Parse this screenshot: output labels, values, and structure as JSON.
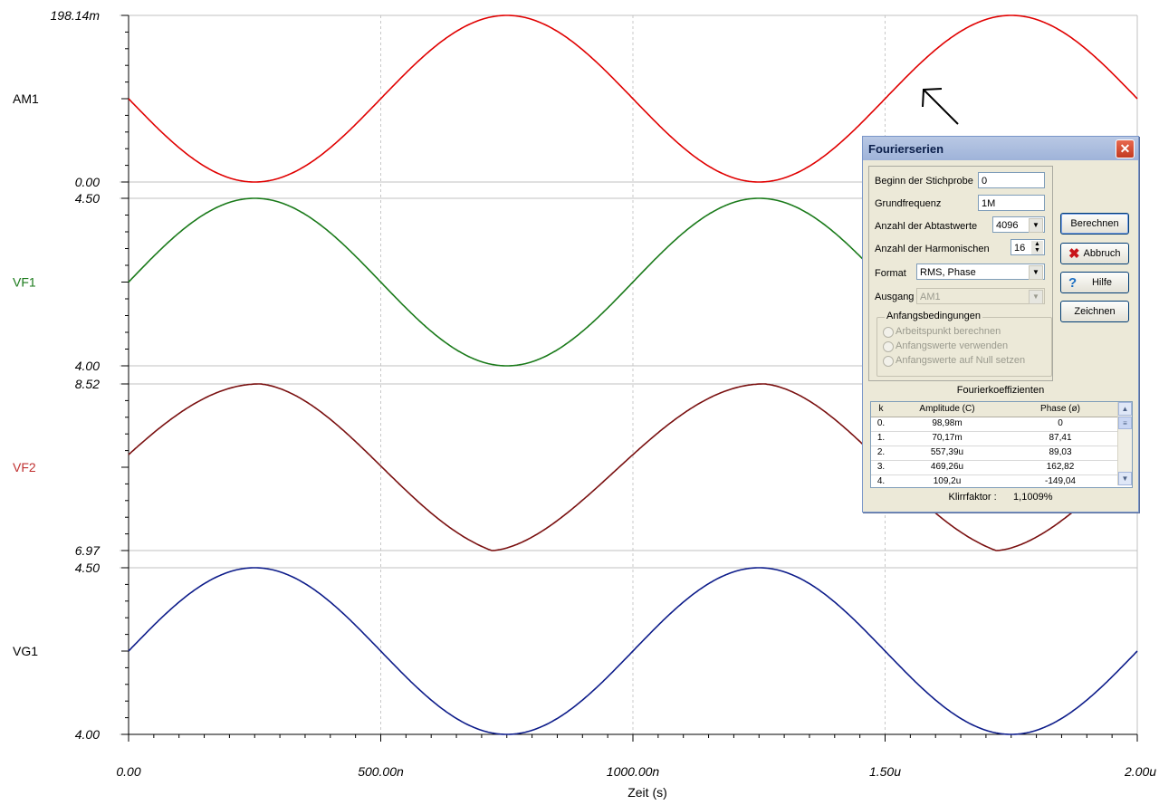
{
  "chart_data": {
    "type": "line",
    "xlabel": "Zeit (s)",
    "x_ticks": [
      "0.00",
      "500.00n",
      "1000.00n",
      "1.50u",
      "2.00u"
    ],
    "x_range_s": [
      0,
      2e-06
    ],
    "panels": [
      {
        "name": "AM1",
        "color": "#e00000",
        "y_top": "198.14m",
        "y_bottom": "0.00",
        "ymin": 0,
        "ymax": 0.19814,
        "series": {
          "shape": "sine",
          "period_s": 1e-06,
          "peak_s": 7.5e-07,
          "offset": 0.09907,
          "amplitude": 0.09907
        }
      },
      {
        "name": "VF1",
        "color": "#1a7a1a",
        "y_top": "4.50",
        "y_bottom": "4.00",
        "ymin": 4.0,
        "ymax": 4.5,
        "series": {
          "shape": "sine",
          "period_s": 1e-06,
          "peak_s": 2.5e-07,
          "offset": 4.25,
          "amplitude": 0.25
        }
      },
      {
        "name": "VF2",
        "color": "#7a1010",
        "y_top": "8.52",
        "y_bottom": "6.97",
        "ymin": 6.97,
        "ymax": 8.52,
        "series": {
          "shape": "cusp",
          "period_s": 1e-06,
          "peak_s": 2.6e-07,
          "trough_s": 7.2e-07,
          "start_value": 7.7
        }
      },
      {
        "name": "VG1",
        "color": "#0d1c8a",
        "y_top": "4.50",
        "y_bottom": "4.00",
        "ymin": 4.0,
        "ymax": 4.5,
        "series": {
          "shape": "sine",
          "period_s": 1e-06,
          "peak_s": 2.5e-07,
          "offset": 4.25,
          "amplitude": 0.25
        }
      }
    ],
    "grid": "vertical-dashed",
    "label_colors": {
      "AM1": "#000000",
      "VF1": "#1a7a1a",
      "VF2": "#c03030",
      "VG1": "#000000"
    }
  },
  "dialog": {
    "title": "Fourierserien",
    "close_icon": "close-icon",
    "fields": {
      "beginn_label": "Beginn der Stichprobe",
      "beginn_value": "0",
      "grundfrequenz_label": "Grundfrequenz",
      "grundfrequenz_value": "1M",
      "abtastwerte_label": "Anzahl der Abtastwerte",
      "abtastwerte_value": "4096",
      "harmonischen_label": "Anzahl der Harmonischen",
      "harmonischen_value": "16",
      "format_label": "Format",
      "format_value": "RMS, Phase",
      "ausgang_label": "Ausgang",
      "ausgang_value": "AM1"
    },
    "group": {
      "title": "Anfangsbedingungen",
      "options": [
        "Arbeitspunkt berechnen",
        "Anfangswerte verwenden",
        "Anfangswerte auf Null setzen"
      ]
    },
    "buttons": {
      "berechnen": "Berechnen",
      "abbruch": "Abbruch",
      "hilfe": "Hilfe",
      "zeichnen": "Zeichnen"
    },
    "coefficients": {
      "title": "Fourierkoeffizienten",
      "headers": [
        "k",
        "Amplitude (C)",
        "Phase (ø)"
      ],
      "rows": [
        [
          "0.",
          "98,98m",
          "0"
        ],
        [
          "1.",
          "70,17m",
          "87,41"
        ],
        [
          "2.",
          "557,39u",
          "89,03"
        ],
        [
          "3.",
          "469,26u",
          "162,82"
        ],
        [
          "4.",
          "109,2u",
          "-149,04"
        ]
      ]
    },
    "klirrfaktor_label": "Klirrfaktor :",
    "klirrfaktor_value": "1,1009%"
  }
}
